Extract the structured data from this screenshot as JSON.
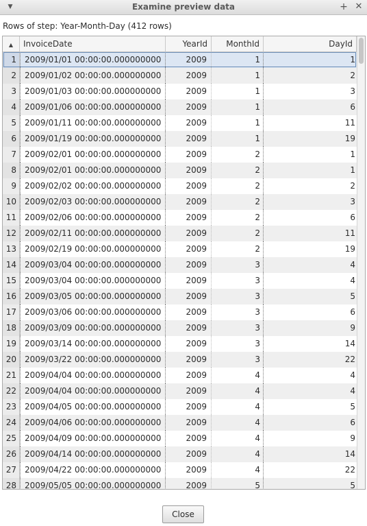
{
  "window": {
    "title": "Examine preview data",
    "menu_icon": "chevron-down-icon",
    "pin_icon": "plus-icon",
    "close_icon": "close-icon"
  },
  "caption": "Rows of step: Year-Month-Day (412 rows)",
  "table": {
    "sort_indicator": "sort-ascending-icon",
    "columns": [
      "InvoiceDate",
      "YearId",
      "MonthId",
      "DayId"
    ],
    "rows": [
      {
        "n": "1",
        "date": "2009/01/01 00:00:00.000000000",
        "year": "2009",
        "month": "1",
        "day": "1"
      },
      {
        "n": "2",
        "date": "2009/01/02 00:00:00.000000000",
        "year": "2009",
        "month": "1",
        "day": "2"
      },
      {
        "n": "3",
        "date": "2009/01/03 00:00:00.000000000",
        "year": "2009",
        "month": "1",
        "day": "3"
      },
      {
        "n": "4",
        "date": "2009/01/06 00:00:00.000000000",
        "year": "2009",
        "month": "1",
        "day": "6"
      },
      {
        "n": "5",
        "date": "2009/01/11 00:00:00.000000000",
        "year": "2009",
        "month": "1",
        "day": "11"
      },
      {
        "n": "6",
        "date": "2009/01/19 00:00:00.000000000",
        "year": "2009",
        "month": "1",
        "day": "19"
      },
      {
        "n": "7",
        "date": "2009/02/01 00:00:00.000000000",
        "year": "2009",
        "month": "2",
        "day": "1"
      },
      {
        "n": "8",
        "date": "2009/02/01 00:00:00.000000000",
        "year": "2009",
        "month": "2",
        "day": "1"
      },
      {
        "n": "9",
        "date": "2009/02/02 00:00:00.000000000",
        "year": "2009",
        "month": "2",
        "day": "2"
      },
      {
        "n": "10",
        "date": "2009/02/03 00:00:00.000000000",
        "year": "2009",
        "month": "2",
        "day": "3"
      },
      {
        "n": "11",
        "date": "2009/02/06 00:00:00.000000000",
        "year": "2009",
        "month": "2",
        "day": "6"
      },
      {
        "n": "12",
        "date": "2009/02/11 00:00:00.000000000",
        "year": "2009",
        "month": "2",
        "day": "11"
      },
      {
        "n": "13",
        "date": "2009/02/19 00:00:00.000000000",
        "year": "2009",
        "month": "2",
        "day": "19"
      },
      {
        "n": "14",
        "date": "2009/03/04 00:00:00.000000000",
        "year": "2009",
        "month": "3",
        "day": "4"
      },
      {
        "n": "15",
        "date": "2009/03/04 00:00:00.000000000",
        "year": "2009",
        "month": "3",
        "day": "4"
      },
      {
        "n": "16",
        "date": "2009/03/05 00:00:00.000000000",
        "year": "2009",
        "month": "3",
        "day": "5"
      },
      {
        "n": "17",
        "date": "2009/03/06 00:00:00.000000000",
        "year": "2009",
        "month": "3",
        "day": "6"
      },
      {
        "n": "18",
        "date": "2009/03/09 00:00:00.000000000",
        "year": "2009",
        "month": "3",
        "day": "9"
      },
      {
        "n": "19",
        "date": "2009/03/14 00:00:00.000000000",
        "year": "2009",
        "month": "3",
        "day": "14"
      },
      {
        "n": "20",
        "date": "2009/03/22 00:00:00.000000000",
        "year": "2009",
        "month": "3",
        "day": "22"
      },
      {
        "n": "21",
        "date": "2009/04/04 00:00:00.000000000",
        "year": "2009",
        "month": "4",
        "day": "4"
      },
      {
        "n": "22",
        "date": "2009/04/04 00:00:00.000000000",
        "year": "2009",
        "month": "4",
        "day": "4"
      },
      {
        "n": "23",
        "date": "2009/04/05 00:00:00.000000000",
        "year": "2009",
        "month": "4",
        "day": "5"
      },
      {
        "n": "24",
        "date": "2009/04/06 00:00:00.000000000",
        "year": "2009",
        "month": "4",
        "day": "6"
      },
      {
        "n": "25",
        "date": "2009/04/09 00:00:00.000000000",
        "year": "2009",
        "month": "4",
        "day": "9"
      },
      {
        "n": "26",
        "date": "2009/04/14 00:00:00.000000000",
        "year": "2009",
        "month": "4",
        "day": "14"
      },
      {
        "n": "27",
        "date": "2009/04/22 00:00:00.000000000",
        "year": "2009",
        "month": "4",
        "day": "22"
      },
      {
        "n": "28",
        "date": "2009/05/05 00:00:00.000000000",
        "year": "2009",
        "month": "5",
        "day": "5"
      }
    ]
  },
  "close_label": "Close",
  "colors": {
    "selection": "#dce6f3",
    "alt_row": "#efefef"
  }
}
